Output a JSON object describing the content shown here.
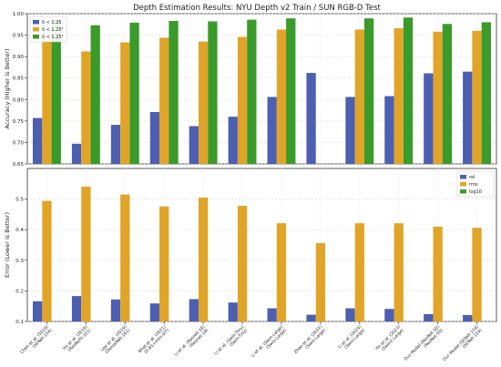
{
  "chart_data": {
    "title": "Depth Estimation Results: NYU Depth v2 Train / SUN RGB-D Test",
    "type": "bar",
    "categories": [
      "Chen et al. (2019)\n(SENet-154)",
      "Yin et al. (2019)\n(ResNeXt-101)",
      "Lee et al. (2019)\n(DenseNet-161)",
      "Bhat et al. (2021)\n(E-B5+mini-ViT)",
      "Li et al. (Resnet-18)\n(Resnet-18)",
      "Li et al. (Swin-Tiny)\n(Swin-Tiny)",
      "Li et al. (Swin-Large)\n(Swin-Large)",
      "Zhao et al. (2022)\n(Swin-Large)",
      "Li et al. (2024)\n(Swin-Large)",
      "Yin et al. (2023)\n(Swin2-Large)",
      "Our Model (ResNet-50)\n(ResNet-50)",
      "Our Model (SENet-154)\n(SENet-154)"
    ],
    "panels": [
      {
        "ylabel": "Accuracy (Higher is Better)",
        "ylim": [
          0.65,
          1.0
        ],
        "yticks": [
          "0.65",
          "0.70",
          "0.75",
          "0.80",
          "0.85",
          "0.90",
          "0.95",
          "1.00"
        ],
        "legend_position": "top-left",
        "series": [
          {
            "name": "δ < 1.25",
            "color": "#4c5fb0",
            "values": [
              0.757,
              0.697,
              0.741,
              0.771,
              0.738,
              0.76,
              0.806,
              0.862,
              0.806,
              0.808,
              0.861,
              0.865
            ]
          },
          {
            "name": "δ < 1.25²",
            "color": "#e0a528",
            "values": [
              0.943,
              0.912,
              0.933,
              0.944,
              0.935,
              0.946,
              0.963,
              null,
              0.963,
              0.966,
              0.958,
              0.96
            ]
          },
          {
            "name": "δ < 1.25³",
            "color": "#3a9a2a",
            "values": [
              0.984,
              0.973,
              0.979,
              0.983,
              0.982,
              0.986,
              0.989,
              null,
              0.989,
              0.991,
              0.976,
              0.98
            ]
          }
        ]
      },
      {
        "ylabel": "Error (Lower is Better)",
        "ylim": [
          0.1,
          0.6
        ],
        "yticks": [
          "0.1",
          "0.2",
          "0.3",
          "0.4",
          "0.5"
        ],
        "legend_position": "top-right",
        "series": [
          {
            "name": "rel",
            "color": "#4c5fb0",
            "values": [
              0.166,
              0.183,
              0.172,
              0.159,
              0.173,
              0.162,
              0.143,
              0.122,
              0.143,
              0.141,
              0.124,
              0.121
            ]
          },
          {
            "name": "rms",
            "color": "#e0a528",
            "values": [
              0.494,
              0.541,
              0.515,
              0.476,
              0.505,
              0.478,
              0.421,
              0.356,
              0.421,
              0.421,
              0.41,
              0.406
            ]
          },
          {
            "name": "log10",
            "color": "#3a9a2a",
            "values": [
              null,
              null,
              null,
              null,
              null,
              null,
              null,
              null,
              null,
              null,
              null,
              null
            ]
          }
        ]
      }
    ],
    "grid": true
  }
}
